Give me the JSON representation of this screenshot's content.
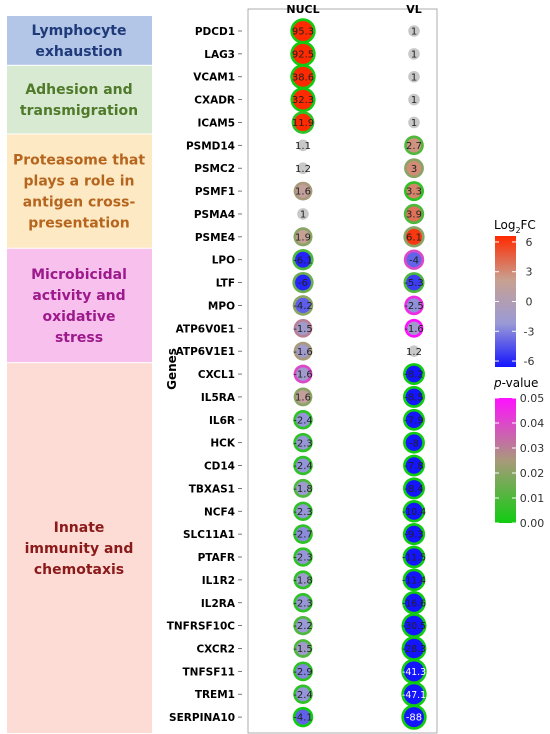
{
  "chart_data": {
    "type": "bubble",
    "columns": [
      "NUCL",
      "VL"
    ],
    "ylabel": "Genes",
    "genes": [
      "PDCD1",
      "LAG3",
      "VCAM1",
      "CXADR",
      "ICAM5",
      "PSMD14",
      "PSMC2",
      "PSMF1",
      "PSMA4",
      "PSME4",
      "LPO",
      "LTF",
      "MPO",
      "ATP6V0E1",
      "ATP6V1E1",
      "CXCL1",
      "IL5RA",
      "IL6R",
      "HCK",
      "CD14",
      "TBXAS1",
      "NCF4",
      "SLC11A1",
      "PTAFR",
      "IL1R2",
      "IL2RA",
      "TNFRSF10C",
      "CXCR2",
      "TNFSF11",
      "TREM1",
      "SERPINA10"
    ],
    "categories": [
      {
        "label": "Lymphocyte exhaustion",
        "lines": [
          "Lymphocyte",
          "exhaustion"
        ],
        "start": 0,
        "end": 1,
        "bg": "#b3c6e7",
        "fg": "#1f3a78"
      },
      {
        "label": "Adhesion and transmigration",
        "lines": [
          "Adhesion and",
          "transmigration"
        ],
        "start": 2,
        "end": 4,
        "bg": "#d9ead3",
        "fg": "#4f7a2a"
      },
      {
        "label": "Proteasome that plays a role in antigen cross-presentation",
        "lines": [
          "Proteasome that",
          "plays a role in",
          "antigen cross-",
          "presentation"
        ],
        "start": 5,
        "end": 9,
        "bg": "#fde9c4",
        "fg": "#b5651d"
      },
      {
        "label": "Microbicidal activity and oxidative stress",
        "lines": [
          "Microbicidal",
          "activity and",
          "oxidative",
          "stress"
        ],
        "start": 10,
        "end": 14,
        "bg": "#f8c0ec",
        "fg": "#9c1a8c"
      },
      {
        "label": "Innate immunity and chemotaxis",
        "lines": [
          "Innate",
          "immunity and",
          "chemotaxis"
        ],
        "start": 15,
        "end": 30,
        "bg": "#fddcd6",
        "fg": "#8b1a1a"
      }
    ],
    "series": [
      {
        "name": "NUCL",
        "values": [
          95.3,
          92.5,
          38.6,
          32.3,
          11.9,
          1.1,
          1.2,
          1.6,
          1,
          1.9,
          -6.1,
          -6,
          -4.2,
          -1.5,
          -1.6,
          -1.6,
          1.6,
          -2.4,
          -2.3,
          -2.4,
          -1.8,
          -2.3,
          -2.7,
          -2.3,
          -1.8,
          -2.3,
          -2.2,
          -1.5,
          -2.9,
          -2.4,
          -4.1
        ],
        "labels": [
          "95.3",
          "92.5",
          "38.6",
          "32.3",
          "11.9",
          "1.1",
          "1.2",
          "1.6",
          "1",
          "1.9",
          "-6.1",
          "-6",
          "-4.2",
          "-1.5",
          "-1.6",
          "-1.6",
          "1.6",
          "-2.4",
          "-2.3",
          "-2.4",
          "-1.8",
          "-2.3",
          "-2.7",
          "-2.3",
          "-1.8",
          "-2.3",
          "-2.2",
          "-1.5",
          "-2.9",
          "-2.4",
          "-4.1"
        ],
        "pvalues": [
          0.0,
          0.0,
          0.0,
          0.0,
          0.005,
          null,
          null,
          0.025,
          null,
          0.02,
          0.01,
          0.015,
          0.02,
          0.03,
          0.025,
          0.04,
          0.02,
          0.005,
          0.005,
          0.005,
          0.01,
          0.005,
          0.005,
          0.005,
          0.005,
          0.005,
          0.01,
          0.01,
          0.005,
          0.005,
          0.0
        ]
      },
      {
        "name": "VL",
        "values": [
          1,
          1,
          1,
          1,
          1,
          2.7,
          3,
          3.3,
          3.9,
          6.1,
          -4,
          -5.3,
          -2.5,
          -1.6,
          1.2,
          -8.2,
          -8.5,
          -7.9,
          -8,
          -7.8,
          -8.4,
          -10.4,
          -9.3,
          -11.5,
          -11.4,
          -16.6,
          -30.5,
          -28.3,
          -41.3,
          -47.1,
          -88
        ],
        "labels": [
          "1",
          "1",
          "1",
          "1",
          "1",
          "2.7",
          "3",
          "3.3",
          "3.9",
          "6.1",
          "-4",
          "-5.3",
          "-2.5",
          "-1.6",
          "1.2",
          "-8.2",
          "-8.5",
          "-7.9",
          "-8",
          "-7.8",
          "-8.4",
          "-10.4",
          "-9.3",
          "-11.5",
          "-11.4",
          "-16.6",
          "-30.5",
          "-28.3",
          "-41.3",
          "-47.1",
          "-88"
        ],
        "pvalues": [
          null,
          null,
          null,
          null,
          null,
          0.01,
          0.02,
          0.005,
          0.01,
          0.02,
          0.04,
          0.01,
          0.045,
          0.05,
          null,
          0.0,
          0.0,
          0.0,
          0.0,
          0.0,
          0.0,
          0.0,
          0.0,
          0.0,
          0.0,
          0.0,
          0.0,
          0.0,
          0.0,
          0.0,
          0.0
        ]
      }
    ],
    "fc_legend": {
      "title": "Log2FC",
      "title_base": "Log",
      "title_sub": "2",
      "title_tail": "FC",
      "ticks": [
        "6",
        "3",
        "0",
        "-3",
        "-6"
      ],
      "tick_values": [
        6,
        3,
        0,
        -3,
        -6
      ],
      "range": [
        -6.6,
        6.6
      ],
      "colors": [
        "#1414ff",
        "#9a9ad6",
        "#c8a090",
        "#ff2a00"
      ]
    },
    "p_legend": {
      "title": "p-value",
      "title_italic": "p",
      "title_tail": "-value",
      "ticks": [
        "0.05",
        "0.04",
        "0.03",
        "0.02",
        "0.01",
        "0.00"
      ],
      "tick_values": [
        0.05,
        0.04,
        0.03,
        0.02,
        0.01,
        0.0
      ],
      "range": [
        0,
        0.05
      ],
      "colors": [
        "#11cc11",
        "#a89a7a",
        "#ff11ff"
      ]
    },
    "neutral_color": "#c8c8c8"
  }
}
